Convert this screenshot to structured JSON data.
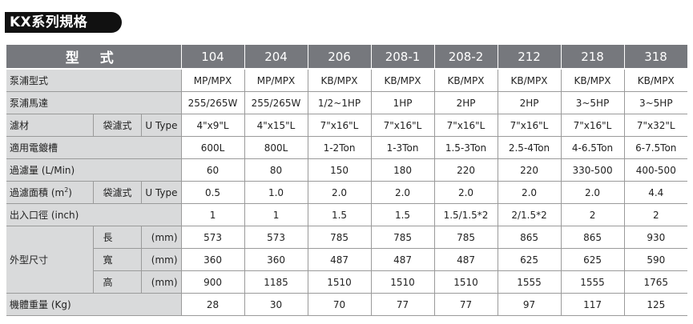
{
  "title": "KX系列規格",
  "header": {
    "type_label": "型 式",
    "models": [
      "104",
      "204",
      "206",
      "208-1",
      "208-2",
      "212",
      "218",
      "318"
    ]
  },
  "rows": {
    "pump_type": {
      "label": "泵浦型式",
      "values": [
        "MP/MPX",
        "MP/MPX",
        "KB/MPX",
        "KB/MPX",
        "KB/MPX",
        "KB/MPX",
        "KB/MPX",
        "KB/MPX"
      ]
    },
    "pump_motor": {
      "label": "泵浦馬達",
      "values": [
        "255/265W",
        "255/265W",
        "1/2~1HP",
        "1HP",
        "2HP",
        "2HP",
        "3~5HP",
        "3~5HP"
      ]
    },
    "filter_media": {
      "label": "濾材",
      "sub1": "袋濾式",
      "sub2": "U Type",
      "values": [
        "4\"x9\"L",
        "4\"x15\"L",
        "7\"x16\"L",
        "7\"x16\"L",
        "7\"x16\"L",
        "7\"x16\"L",
        "7\"x16\"L",
        "7\"x32\"L"
      ]
    },
    "tank": {
      "label": "適用電鍍槽",
      "values": [
        "600L",
        "800L",
        "1-2Ton",
        "1-3Ton",
        "1.5-3Ton",
        "2.5-4Ton",
        "4-6.5Ton",
        "6-7.5Ton"
      ]
    },
    "flow": {
      "label": "過濾量 (L/Min)",
      "values": [
        "60",
        "80",
        "150",
        "180",
        "220",
        "220",
        "330-500",
        "400-500"
      ]
    },
    "area": {
      "label": "過濾面積 (m",
      "label_sup": "2",
      "label_end": ")",
      "sub1": "袋濾式",
      "sub2": "U Type",
      "values": [
        "0.5",
        "1.0",
        "2.0",
        "2.0",
        "2.0",
        "2.0",
        "2.0",
        "4.4"
      ]
    },
    "port": {
      "label": "出入口徑 (inch)",
      "values": [
        "1",
        "1",
        "1.5",
        "1.5",
        "1.5/1.5*2",
        "2/1.5*2",
        "2",
        "2"
      ]
    },
    "dims": {
      "label": "外型尺寸",
      "length": {
        "label": "長",
        "unit": "(mm)",
        "values": [
          "573",
          "573",
          "785",
          "785",
          "785",
          "865",
          "865",
          "930"
        ]
      },
      "width": {
        "label": "寬",
        "unit": "(mm)",
        "values": [
          "360",
          "360",
          "487",
          "487",
          "487",
          "625",
          "625",
          "590"
        ]
      },
      "height": {
        "label": "高",
        "unit": "(mm)",
        "values": [
          "900",
          "1185",
          "1510",
          "1510",
          "1510",
          "1555",
          "1555",
          "1765"
        ]
      }
    },
    "weight": {
      "label": "機體重量 (Kg)",
      "values": [
        "28",
        "30",
        "70",
        "77",
        "77",
        "97",
        "117",
        "125"
      ]
    }
  }
}
